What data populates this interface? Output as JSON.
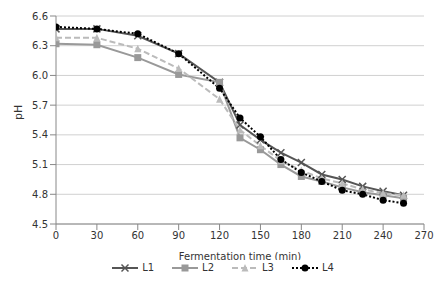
{
  "chart_data": {
    "type": "line",
    "x_label": "Fermentation time (min)",
    "y_label": "pH",
    "x": [
      0,
      30,
      60,
      90,
      120,
      135,
      150,
      165,
      180,
      195,
      210,
      225,
      240,
      255
    ],
    "series": [
      {
        "name": "L1",
        "color": "#555555",
        "marker": "x",
        "line_style": "solid",
        "values": [
          6.47,
          6.47,
          6.4,
          6.22,
          5.93,
          5.5,
          5.35,
          5.22,
          5.12,
          5.0,
          4.95,
          4.88,
          4.83,
          4.79
        ]
      },
      {
        "name": "L2",
        "color": "#999999",
        "marker": "square",
        "line_style": "solid",
        "values": [
          6.32,
          6.31,
          6.18,
          6.01,
          5.93,
          5.37,
          5.25,
          5.1,
          4.98,
          4.93,
          4.87,
          4.82,
          4.79,
          4.76
        ]
      },
      {
        "name": "L3",
        "color": "#bbbbbb",
        "marker": "triangle",
        "line_style": "dashed",
        "values": [
          6.38,
          6.38,
          6.27,
          6.07,
          5.76,
          5.45,
          5.29,
          5.14,
          5.04,
          4.96,
          4.91,
          4.85,
          4.81,
          4.79
        ]
      },
      {
        "name": "L4",
        "color": "#000000",
        "marker": "circle",
        "line_style": "dotted",
        "values": [
          6.49,
          6.47,
          6.42,
          6.22,
          5.87,
          5.57,
          5.38,
          5.15,
          5.02,
          4.93,
          4.84,
          4.8,
          4.74,
          4.71
        ]
      }
    ],
    "xlim": [
      0,
      270
    ],
    "xticks": [
      0,
      30,
      60,
      90,
      120,
      150,
      180,
      210,
      240,
      270
    ],
    "ylim": [
      4.5,
      6.6
    ],
    "yticks": [
      4.5,
      4.8,
      5.1,
      5.4,
      5.7,
      {
        "value": 6,
        "label": "6.0"
      },
      6.3,
      6.6
    ],
    "grid": true,
    "legend": "bottom"
  }
}
